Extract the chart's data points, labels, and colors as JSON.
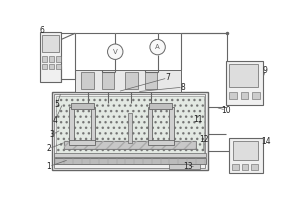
{
  "bg_color": "#ffffff",
  "lc": "#666666",
  "lc_dark": "#444444",
  "fill_tank": "#e8e8e8",
  "fill_liquid": "#dde8dd",
  "fill_box": "#f0f0f0",
  "fill_screen": "#dddddd",
  "fill_gray": "#cccccc",
  "fill_mid": "#c8c8c8"
}
